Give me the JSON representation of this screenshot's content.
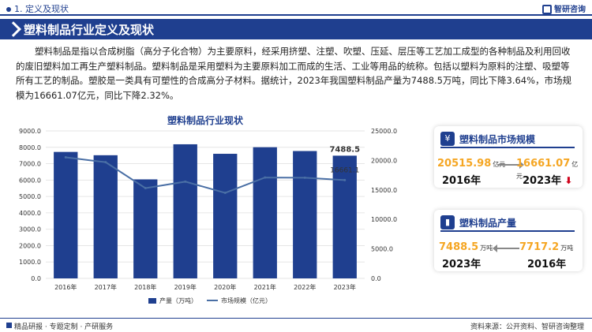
{
  "header": {
    "section": "1. 定义及现状",
    "brand": "智研咨询"
  },
  "title": "塑料制品行业定义及现状",
  "paragraph": "塑料制品是指以合成树脂（高分子化合物）为主要原料，经采用挤塑、注塑、吹塑、压延、层压等工艺加工成型的各种制品及利用回收的废旧塑料加工再生产塑料制品。塑料制品是采用塑料为主要原料加工而成的生活、工业等用品的统称。包括以塑料为原料的注塑、吸塑等所有工艺的制品。塑胶是一类具有可塑性的合成高分子材料。据统计，2023年我国塑料制品产量为7488.5万吨，同比下降3.64%，市场规模为16661.07亿元，同比下降2.32%。",
  "chart_data": {
    "type": "bar",
    "title": "塑料制品行业现状",
    "categories": [
      "2016年",
      "2017年",
      "2018年",
      "2019年",
      "2020年",
      "2021年",
      "2022年",
      "2023年"
    ],
    "series": [
      {
        "name": "产量（万吨）",
        "type": "bar",
        "axis": "left",
        "values": [
          7717.2,
          7515.5,
          6042.1,
          8184.2,
          7603.2,
          8004.0,
          7771.6,
          7488.5
        ]
      },
      {
        "name": "市场规模（亿元）",
        "type": "line",
        "axis": "right",
        "values": [
          20515.98,
          19700,
          15300,
          16400,
          14500,
          17100,
          17057.0,
          16661.07
        ]
      }
    ],
    "ylim_left": [
      0,
      9000
    ],
    "yticks_left": [
      "0.0",
      "1000.0",
      "2000.0",
      "3000.0",
      "4000.0",
      "5000.0",
      "6000.0",
      "7000.0",
      "8000.0",
      "9000.0"
    ],
    "ylim_right": [
      0,
      25000
    ],
    "yticks_right": [
      "0.0",
      "5000.0",
      "10000.0",
      "15000.0",
      "20000.0",
      "25000.0"
    ],
    "labels": {
      "bar_last": "7488.5",
      "line_last": "16661.1"
    },
    "legend": "bottom",
    "colors": {
      "bar": "#1f3f8f",
      "line": "#4a6fa5"
    }
  },
  "card_market": {
    "title": "塑料制品市场规模",
    "from_value": "20515.98",
    "from_unit": "亿元",
    "from_year": "2016年",
    "to_value": "16661.07",
    "to_unit": "亿元",
    "to_year": "2023年"
  },
  "card_output": {
    "title": "塑料制品产量",
    "left_value": "7488.5",
    "left_unit": "万吨",
    "left_year": "2023年",
    "right_value": "7717.2",
    "right_unit": "万吨",
    "right_year": "2016年"
  },
  "footer": {
    "left": "精品研报 · 专题定制 · 产研服务",
    "right": "资料来源：公开资料、智研咨询整理"
  }
}
